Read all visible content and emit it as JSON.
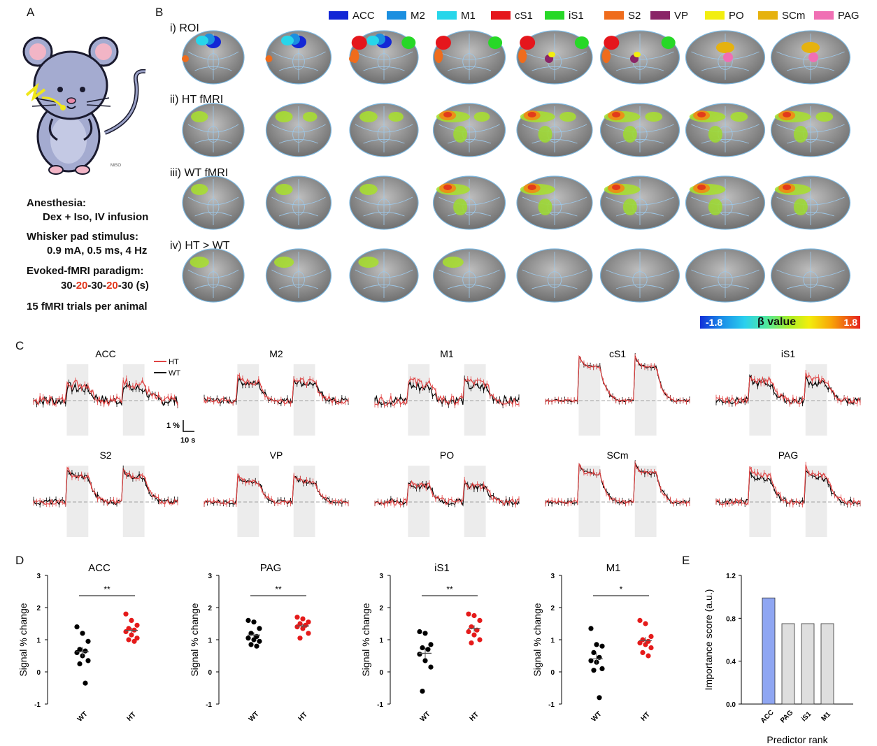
{
  "panels": {
    "a": "A",
    "b": "B",
    "c": "C",
    "d": "D",
    "e": "E"
  },
  "mouse": {
    "signature": "MiSO"
  },
  "protocol": {
    "anesthesia_label": "Anesthesia:",
    "anesthesia_value": "Dex + Iso, IV infusion",
    "stimulus_label": "Whisker pad stimulus:",
    "stimulus_value": "0.9 mA, 0.5 ms, 4 Hz",
    "paradigm_label": "Evoked-fMRI paradigm:",
    "paradigm_parts": [
      "30-",
      "20",
      "-30-",
      "20",
      "-30 (s)"
    ],
    "trials": "15 fMRI trials per animal"
  },
  "roi_legend": [
    {
      "label": "ACC",
      "color": "#1327d6"
    },
    {
      "label": "M2",
      "color": "#1b8fe0"
    },
    {
      "label": "M1",
      "color": "#27d6ea"
    },
    {
      "label": "cS1",
      "color": "#e5161c"
    },
    {
      "label": "iS1",
      "color": "#27d827"
    },
    {
      "label": "S2",
      "color": "#ef6c1c"
    },
    {
      "label": "VP",
      "color": "#8a2567"
    },
    {
      "label": "PO",
      "color": "#f2ee10"
    },
    {
      "label": "SCm",
      "color": "#e6b20e"
    },
    {
      "label": "PAG",
      "color": "#f06fb4"
    }
  ],
  "row_labels": [
    "i) ROI",
    "ii) HT fMRI",
    "iii) WT fMRI",
    "iv) HT > WT"
  ],
  "colorbar": {
    "min": "-1.8",
    "label": "β value",
    "max": "1.8"
  },
  "traces": {
    "legend": [
      "HT",
      "WT"
    ],
    "colors": {
      "HT": "#e04444",
      "WT": "#000000"
    },
    "scale": {
      "y": "1 %",
      "x": "10 s"
    },
    "regions": [
      "ACC",
      "M2",
      "M1",
      "cS1",
      "iS1",
      "S2",
      "VP",
      "PO",
      "SCm",
      "PAG"
    ]
  },
  "chart_data": [
    {
      "type": "scatter",
      "title": "ACC",
      "ylabel": "Signal % change",
      "categories": [
        "WT",
        "HT"
      ],
      "ylim": [
        -1,
        3
      ],
      "yticks": [
        -1,
        0,
        1,
        2,
        3
      ],
      "groups": [
        {
          "name": "WT",
          "color": "#000000",
          "values": [
            1.4,
            1.2,
            0.95,
            0.7,
            0.65,
            0.6,
            0.5,
            0.35,
            0.25,
            -0.35
          ]
        },
        {
          "name": "HT",
          "color": "#e51a1a",
          "values": [
            1.8,
            1.6,
            1.45,
            1.35,
            1.3,
            1.25,
            1.15,
            1.05,
            1.0,
            0.95
          ]
        }
      ],
      "significance": "**"
    },
    {
      "type": "scatter",
      "title": "PAG",
      "ylabel": "Signal % change",
      "categories": [
        "WT",
        "HT"
      ],
      "ylim": [
        -1,
        3
      ],
      "yticks": [
        -1,
        0,
        1,
        2,
        3
      ],
      "groups": [
        {
          "name": "WT",
          "color": "#000000",
          "values": [
            1.6,
            1.55,
            1.35,
            1.2,
            1.1,
            1.05,
            1.0,
            0.95,
            0.85,
            0.8
          ]
        },
        {
          "name": "HT",
          "color": "#e51a1a",
          "values": [
            1.7,
            1.65,
            1.55,
            1.5,
            1.45,
            1.4,
            1.35,
            1.2,
            1.05
          ]
        }
      ],
      "significance": "**"
    },
    {
      "type": "scatter",
      "title": "iS1",
      "ylabel": "Signal % change",
      "categories": [
        "WT",
        "HT"
      ],
      "ylim": [
        -1,
        3
      ],
      "yticks": [
        -1,
        0,
        1,
        2,
        3
      ],
      "groups": [
        {
          "name": "WT",
          "color": "#000000",
          "values": [
            1.25,
            1.2,
            0.85,
            0.75,
            0.7,
            0.55,
            0.35,
            0.15,
            -0.6
          ]
        },
        {
          "name": "HT",
          "color": "#e51a1a",
          "values": [
            1.8,
            1.75,
            1.6,
            1.4,
            1.3,
            1.25,
            1.15,
            1.0,
            0.9
          ]
        }
      ],
      "significance": "**"
    },
    {
      "type": "scatter",
      "title": "M1",
      "ylabel": "Signal % change",
      "categories": [
        "WT",
        "HT"
      ],
      "ylim": [
        -1,
        3
      ],
      "yticks": [
        -1,
        0,
        1,
        2,
        3
      ],
      "groups": [
        {
          "name": "WT",
          "color": "#000000",
          "values": [
            1.35,
            0.85,
            0.8,
            0.6,
            0.45,
            0.35,
            0.3,
            0.1,
            0.05,
            -0.8
          ]
        },
        {
          "name": "HT",
          "color": "#e51a1a",
          "values": [
            1.6,
            1.5,
            1.1,
            1.0,
            0.95,
            0.9,
            0.85,
            0.75,
            0.6,
            0.5
          ]
        }
      ],
      "significance": "*"
    },
    {
      "type": "bar",
      "ylabel": "Importance score (a.u.)",
      "xlabel": "Predictor rank",
      "categories": [
        "ACC",
        "PAG",
        "iS1",
        "M1"
      ],
      "values": [
        0.99,
        0.75,
        0.75,
        0.75
      ],
      "ylim": [
        0,
        1.2
      ],
      "yticks": [
        "0.0",
        "0.4",
        "0.8",
        "1.2"
      ],
      "colors": [
        "#8fa6f2",
        "#dedede",
        "#dedede",
        "#dedede"
      ]
    }
  ]
}
